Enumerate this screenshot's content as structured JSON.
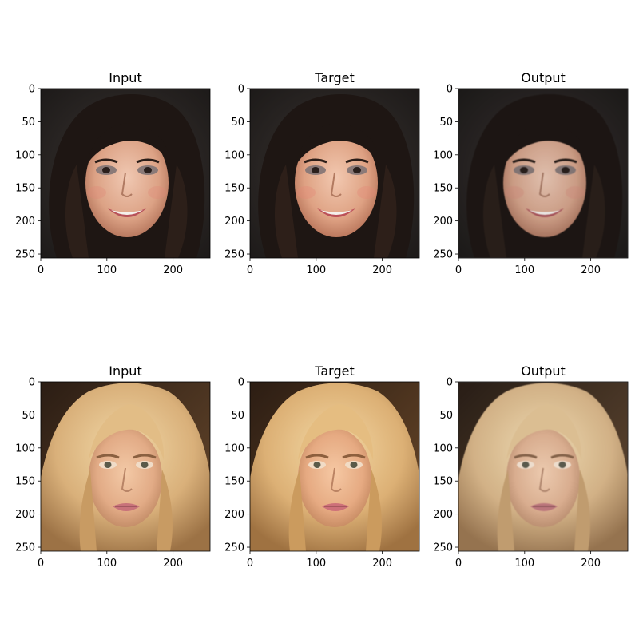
{
  "figure": {
    "rows": [
      {
        "panels": [
          {
            "title": "Input",
            "image_desc": "face-portrait-dark-hair-input"
          },
          {
            "title": "Target",
            "image_desc": "face-portrait-dark-hair-target"
          },
          {
            "title": "Output",
            "image_desc": "face-portrait-dark-hair-output"
          }
        ]
      },
      {
        "panels": [
          {
            "title": "Input",
            "image_desc": "face-portrait-blonde-hair-input"
          },
          {
            "title": "Target",
            "image_desc": "face-portrait-blonde-hair-target"
          },
          {
            "title": "Output",
            "image_desc": "face-portrait-blonde-hair-output"
          }
        ]
      }
    ],
    "x_ticks": [
      "0",
      "100",
      "200"
    ],
    "y_ticks": [
      "0",
      "50",
      "100",
      "150",
      "200",
      "250"
    ],
    "x_tick_values": [
      0,
      100,
      200
    ],
    "y_tick_values": [
      0,
      50,
      100,
      150,
      200,
      250
    ],
    "image_size": 256
  },
  "colors": {
    "dark_bg": "#2a2624",
    "dark_hair": "#1e1613",
    "skin_light": "#e3b49b",
    "skin_warm": "#d79a7e",
    "blonde_bg": "#3a2a1e",
    "blonde_hair": "#d9b27a",
    "blonde_hair_light": "#eccf99",
    "skin_blonde": "#e8b794",
    "lips": "#c8727a"
  }
}
